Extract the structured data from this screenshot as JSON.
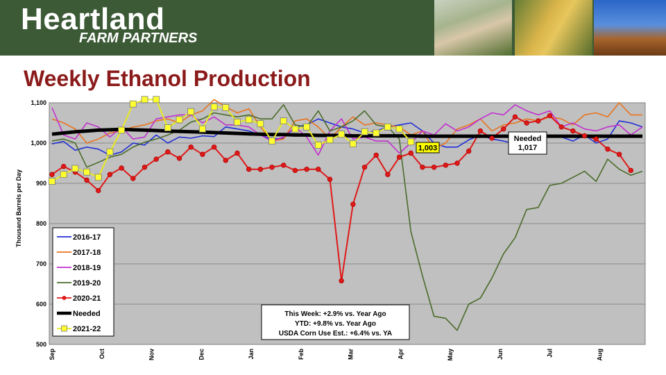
{
  "header": {
    "brand_main": "Heartland",
    "brand_sub": "FARM PARTNERS"
  },
  "page_title": "Weekly Ethanol Production",
  "chart_data": {
    "type": "line",
    "title": "",
    "ylabel": "Thousand Barrels per Day",
    "ylim": [
      500,
      1100
    ],
    "y_ticks": [
      "500",
      "600",
      "700",
      "800",
      "900",
      "1,000",
      "1,100"
    ],
    "y_tick_values": [
      500,
      600,
      700,
      800,
      900,
      1000,
      1100
    ],
    "x_range": [
      1,
      52
    ],
    "month_labels": [
      "Sep",
      "Oct",
      "Nov",
      "Dec",
      "Jan",
      "Feb",
      "Mar",
      "Apr",
      "May",
      "Jun",
      "Jul",
      "Aug"
    ],
    "month_weeks": [
      1,
      5.3,
      9.6,
      13.9,
      18.2,
      22.5,
      26.8,
      31.1,
      35.4,
      39.7,
      44,
      48.3
    ],
    "grid": true,
    "legend_position": "left",
    "colors": {
      "2016-17": "#1f2ed6",
      "2017-18": "#e8731e",
      "2018-19": "#c22fcf",
      "2019-20": "#4a6b29",
      "2020-21": "#e01818",
      "Needed": "#000000",
      "2021-22": "#e8ea20"
    },
    "series": [
      {
        "name": "2016-17",
        "values": [
          998,
          1004,
          982,
          990,
          985,
          970,
          978,
          1000,
          995,
          1020,
          1000,
          1015,
          1012,
          1018,
          1016,
          1040,
          1035,
          1030,
          1020,
          1010,
          1012,
          1040,
          1045,
          1060,
          1050,
          1040,
          1035,
          1025,
          1030,
          1040,
          1045,
          1050,
          1030,
          1000,
          990,
          990,
          1008,
          1020,
          1010,
          1005,
          998,
          1000,
          1010,
          1020,
          1015,
          1005,
          1020,
          1000,
          1010,
          1055,
          1050,
          1040
        ]
      },
      {
        "name": "2017-18",
        "values": [
          1060,
          1050,
          1035,
          1000,
          1010,
          1025,
          1030,
          1040,
          1045,
          1055,
          1060,
          1050,
          1070,
          1080,
          1108,
          1090,
          1075,
          1085,
          1040,
          1005,
          1010,
          1055,
          1060,
          1040,
          1010,
          1040,
          1065,
          1045,
          1050,
          1045,
          1040,
          1020,
          1030,
          985,
          1000,
          1035,
          1045,
          1060,
          1030,
          1045,
          1050,
          1060,
          1055,
          1065,
          1060,
          1045,
          1070,
          1075,
          1065,
          1100,
          1070,
          1070
        ]
      },
      {
        "name": "2018-19",
        "values": [
          1088,
          1020,
          1010,
          1050,
          1040,
          1015,
          1040,
          1010,
          1015,
          1060,
          1065,
          1070,
          1070,
          1050,
          1065,
          1045,
          1045,
          1040,
          1020,
          1005,
          1015,
          1040,
          1015,
          970,
          1030,
          1060,
          1010,
          1015,
          1005,
          1005,
          975,
          1000,
          1030,
          1020,
          1048,
          1030,
          1040,
          1060,
          1075,
          1070,
          1095,
          1080,
          1070,
          1080,
          1040,
          1050,
          1035,
          1030,
          1040,
          1045,
          1020,
          1040
        ]
      },
      {
        "name": "2019-20",
        "values": [
          1005,
          1010,
          1000,
          940,
          952,
          965,
          972,
          990,
          1002,
          1010,
          1020,
          1032,
          1052,
          1060,
          1075,
          1070,
          1065,
          1070,
          1060,
          1060,
          1095,
          1045,
          1040,
          1080,
          1030,
          1040,
          1055,
          1080,
          1045,
          1040,
          1010,
          780,
          670,
          570,
          565,
          535,
          600,
          615,
          665,
          725,
          765,
          835,
          840,
          895,
          900,
          915,
          930,
          905,
          960,
          935,
          920,
          930
        ]
      },
      {
        "name": "2020-21",
        "values": [
          922,
          942,
          928,
          908,
          882,
          922,
          938,
          912,
          940,
          960,
          978,
          962,
          990,
          972,
          990,
          957,
          975,
          935,
          935,
          940,
          945,
          932,
          935,
          935,
          910,
          658,
          848,
          940,
          970,
          922,
          965,
          975,
          940,
          940,
          945,
          950,
          980,
          1030,
          1012,
          1035,
          1065,
          1050,
          1055,
          1068,
          1040,
          1030,
          1018,
          1010,
          985,
          972,
          932
        ]
      },
      {
        "name": "Needed",
        "values": [
          1022,
          1025,
          1028,
          1030,
          1032,
          1033,
          1034,
          1033,
          1032,
          1031,
          1030,
          1029,
          1028,
          1027,
          1026,
          1025,
          1024,
          1023,
          1022,
          1021,
          1021,
          1020,
          1020,
          1019,
          1019,
          1019,
          1018,
          1018,
          1018,
          1018,
          1018,
          1018,
          1017,
          1017,
          1017,
          1017,
          1017,
          1017,
          1017,
          1017,
          1017,
          1017,
          1017,
          1017,
          1017,
          1017,
          1017,
          1017,
          1017,
          1017,
          1017,
          1017
        ]
      },
      {
        "name": "2021-22",
        "values": [
          905,
          922,
          937,
          928,
          915,
          978,
          1032,
          1097,
          1108,
          1108,
          1038,
          1058,
          1078,
          1035,
          1090,
          1088,
          1052,
          1058,
          1048,
          1005,
          1055,
          1035,
          1040,
          995,
          1008,
          1022,
          998,
          1028,
          1025,
          1040,
          1035,
          1003
        ]
      }
    ],
    "annotations": {
      "needed_label_line1": "Needed",
      "needed_value": "1,017",
      "latest_value": "1,003",
      "stats_line1": "This Week:  +2.9% vs. Year Ago",
      "stats_line2": "YTD:  +9.8% vs. Year Ago",
      "stats_line3": "USDA Corn Use Est.:  +6.4% vs. YA"
    }
  }
}
